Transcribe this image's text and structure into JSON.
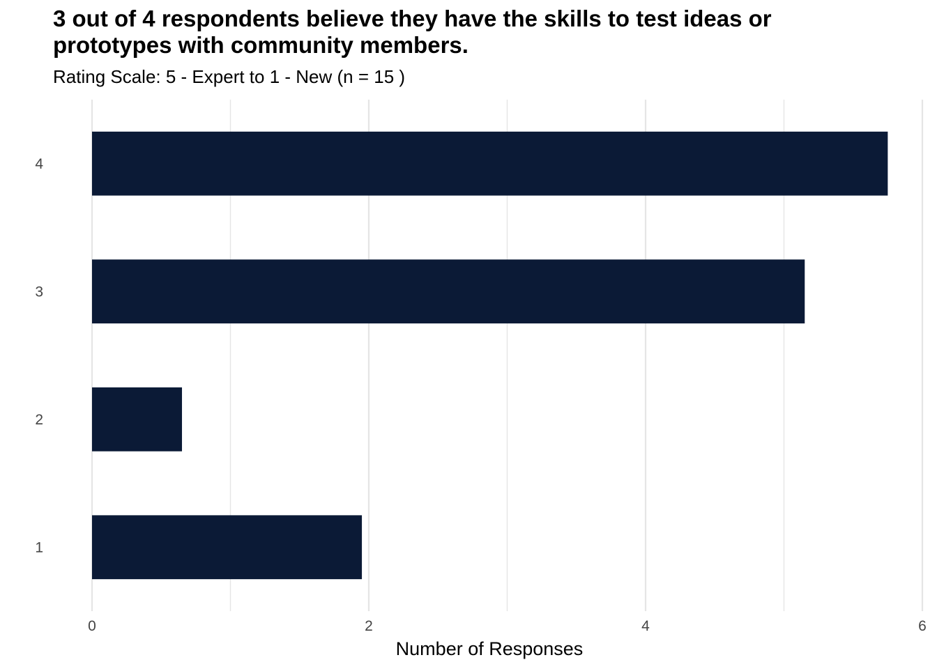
{
  "chart_data": {
    "type": "bar",
    "orientation": "horizontal",
    "title": "3 out of 4 respondents believe they have the skills to test ideas or prototypes with community members.",
    "subtitle": "Rating Scale: 5 - Expert to 1 - New (n = 15 )",
    "xlabel": "Number of Responses",
    "ylabel": "",
    "categories": [
      "4",
      "3",
      "2",
      "1"
    ],
    "values": [
      5.75,
      5.15,
      0.65,
      1.95
    ],
    "xlim": [
      0,
      6
    ],
    "x_ticks": [
      "0",
      "2",
      "4",
      "6"
    ],
    "x_tick_values": [
      0,
      2,
      4,
      6
    ],
    "grid": true,
    "legend": "none",
    "bar_color": "#0b1a36",
    "grid_color": "#e5e5e5"
  }
}
